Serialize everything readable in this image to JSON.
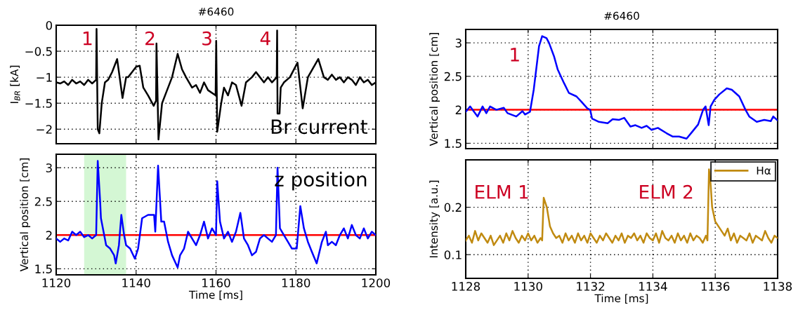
{
  "chart_data": [
    {
      "type": "line",
      "title": "#6460",
      "ylabel": "I$_{BR}$ [kA]",
      "xlim": [
        1120,
        1200
      ],
      "xticks": [
        1120,
        1140,
        1160,
        1180,
        1200
      ],
      "ylim": [
        -2.28,
        0
      ],
      "yticks": [
        {
          "value": -2,
          "label": "−2"
        },
        {
          "value": -1.5,
          "label": "−1.5"
        },
        {
          "value": -1,
          "label": "−1"
        },
        {
          "value": -0.5,
          "label": "−0.5"
        },
        0
      ],
      "tick_labels": "y",
      "grid": true,
      "annotations": [
        "1",
        "2",
        "3",
        "4",
        "Br current"
      ],
      "series": [
        {
          "color": "#000000",
          "x": [
            1120,
            1121,
            1122,
            1123,
            1124,
            1125,
            1126,
            1127,
            1128,
            1129,
            1130,
            1130.1,
            1130.4,
            1130.8,
            1131.4,
            1132.2,
            1133,
            1134,
            1135.25,
            1136.6,
            1137.5,
            1138,
            1139,
            1140,
            1140.9,
            1141.8,
            1143,
            1144.4,
            1145,
            1145.1,
            1145.6,
            1146.5,
            1147.5,
            1149,
            1150.4,
            1151.5,
            1152.5,
            1154,
            1155,
            1156,
            1157,
            1158,
            1159.9,
            1160.05,
            1160.3,
            1161.3,
            1162,
            1163,
            1164,
            1165,
            1166.4,
            1167.5,
            1169,
            1170,
            1171,
            1172,
            1173,
            1174,
            1175.2,
            1175.3,
            1175.4,
            1175.9,
            1176.2,
            1177,
            1178.5,
            1180.4,
            1181.7,
            1183,
            1185.6,
            1187,
            1188,
            1189,
            1190,
            1191,
            1192,
            1193,
            1194,
            1195,
            1196,
            1197,
            1198,
            1199,
            1200
          ],
          "values": [
            -1.1,
            -1.12,
            -1.08,
            -1.15,
            -1.05,
            -1.12,
            -1.08,
            -1.15,
            -1.05,
            -1.12,
            -1.05,
            -0.07,
            -2.0,
            -2.08,
            -1.5,
            -1.1,
            -1.05,
            -0.9,
            -0.65,
            -1.4,
            -1.0,
            -1.0,
            -0.9,
            -0.8,
            -0.78,
            -1.2,
            -1.35,
            -1.55,
            -1.45,
            -0.35,
            -2.2,
            -1.5,
            -1.3,
            -1.0,
            -0.55,
            -0.85,
            -1.0,
            -1.2,
            -1.15,
            -1.3,
            -1.1,
            -1.25,
            -1.35,
            -0.3,
            -2.05,
            -1.5,
            -1.2,
            -1.35,
            -1.1,
            -1.15,
            -1.55,
            -1.1,
            -1.0,
            -0.9,
            -1.0,
            -1.1,
            -1.0,
            -1.1,
            -1.0,
            -0.1,
            -1.7,
            -1.7,
            -1.2,
            -1.1,
            -1.0,
            -0.72,
            -1.6,
            -1.0,
            -0.65,
            -1.0,
            -1.05,
            -0.95,
            -1.05,
            -1.0,
            -1.1,
            -1.0,
            -1.05,
            -1.15,
            -1.0,
            -1.1,
            -1.05,
            -1.15,
            -1.1
          ]
        }
      ]
    },
    {
      "type": "line",
      "xlabel": "Time [ms]",
      "ylabel": "Vertical position [cm]",
      "xlim": [
        1120,
        1200
      ],
      "xticks": [
        1120,
        1140,
        1160,
        1180,
        1200
      ],
      "ylim": [
        1.41,
        3.2
      ],
      "yticks": [
        1.5,
        2,
        2.5,
        3
      ],
      "grid": true,
      "annotations": [
        "z position"
      ],
      "ref_lines": [
        {
          "axis": "y",
          "value": 2,
          "color": "#ff0000"
        }
      ],
      "bands": [
        {
          "axis": "x",
          "from": 1127,
          "to": 1137.5,
          "color": "#d4f7d4"
        }
      ],
      "series": [
        {
          "color": "#0000ff",
          "x": [
            1120,
            1121,
            1122,
            1123,
            1124,
            1125,
            1126,
            1127,
            1128,
            1129,
            1130,
            1130.4,
            1131,
            1131.2,
            1132.5,
            1133.5,
            1134.5,
            1134.9,
            1135.7,
            1136.3,
            1137,
            1137.5,
            1138.5,
            1139.7,
            1140.5,
            1141.5,
            1143,
            1144.5,
            1144.8,
            1145.5,
            1146.3,
            1147,
            1148,
            1149,
            1150.4,
            1151,
            1152,
            1153,
            1154,
            1155,
            1156,
            1157,
            1158,
            1159,
            1160,
            1160.3,
            1161,
            1162,
            1163,
            1164,
            1165,
            1166.1,
            1167,
            1168,
            1169,
            1170,
            1171,
            1172,
            1173,
            1174,
            1175,
            1175.4,
            1176,
            1177,
            1178,
            1179,
            1180.2,
            1181.1,
            1182,
            1183,
            1184,
            1185.2,
            1186.5,
            1187.5,
            1188,
            1189,
            1190,
            1191,
            1192,
            1193,
            1194,
            1195,
            1196,
            1197,
            1198,
            1199,
            1200
          ],
          "values": [
            1.95,
            1.9,
            1.95,
            1.92,
            2.05,
            2.0,
            2.05,
            1.97,
            2.0,
            1.95,
            2.0,
            3.1,
            2.5,
            2.25,
            1.85,
            1.8,
            1.7,
            1.58,
            1.85,
            2.3,
            2.0,
            1.85,
            1.8,
            1.65,
            1.8,
            2.25,
            2.3,
            2.3,
            2.05,
            3.03,
            2.2,
            2.2,
            1.9,
            1.7,
            1.52,
            1.7,
            1.8,
            2.05,
            1.95,
            1.85,
            2.0,
            2.2,
            1.95,
            2.1,
            2.0,
            2.8,
            2.2,
            1.95,
            2.05,
            1.9,
            2.05,
            2.33,
            1.95,
            1.85,
            1.7,
            1.75,
            1.95,
            2.0,
            1.95,
            1.9,
            2.0,
            3.0,
            2.1,
            2.0,
            1.9,
            1.8,
            1.8,
            2.43,
            2.1,
            1.9,
            1.75,
            1.58,
            1.9,
            2.05,
            1.85,
            1.9,
            1.85,
            2.0,
            2.1,
            1.95,
            2.15,
            2.0,
            1.95,
            2.1,
            1.95,
            2.05,
            2.0
          ]
        }
      ]
    },
    {
      "type": "line",
      "title": "#6460",
      "ylabel": "Vertical position [cm]",
      "xlim": [
        1128,
        1138
      ],
      "xticks": [
        1128,
        1130,
        1132,
        1134,
        1136,
        1138
      ],
      "ylim": [
        1.42,
        3.2
      ],
      "yticks": [
        1.5,
        2,
        2.5,
        3
      ],
      "tick_labels": "y",
      "grid": true,
      "annotations": [
        "1"
      ],
      "ref_lines": [
        {
          "axis": "y",
          "value": 2,
          "color": "#ff0000"
        }
      ],
      "series": [
        {
          "color": "#0000ff",
          "x": [
            1128,
            1128.14,
            1128.38,
            1128.54,
            1128.66,
            1128.78,
            1128.98,
            1129.22,
            1129.34,
            1129.62,
            1129.82,
            1129.9,
            1130.06,
            1130.18,
            1130.35,
            1130.45,
            1130.59,
            1130.67,
            1130.83,
            1130.95,
            1131.15,
            1131.31,
            1131.55,
            1131.71,
            1131.9,
            1131.99,
            1132.05,
            1132.27,
            1132.55,
            1132.71,
            1132.92,
            1133.08,
            1133.28,
            1133.44,
            1133.64,
            1133.8,
            1133.96,
            1134.16,
            1134.44,
            1134.64,
            1134.84,
            1135.08,
            1135.24,
            1135.45,
            1135.61,
            1135.69,
            1135.79,
            1135.85,
            1135.97,
            1136.13,
            1136.37,
            1136.53,
            1136.77,
            1136.97,
            1137.09,
            1137.33,
            1137.57,
            1137.78,
            1137.86,
            1138
          ],
          "values": [
            1.97,
            2.05,
            1.9,
            2.05,
            1.95,
            2.05,
            2.0,
            2.03,
            1.95,
            1.9,
            1.98,
            1.93,
            1.97,
            2.3,
            2.95,
            3.1,
            3.07,
            3.0,
            2.8,
            2.6,
            2.4,
            2.25,
            2.2,
            2.12,
            2.02,
            2.0,
            1.87,
            1.82,
            1.8,
            1.86,
            1.85,
            1.88,
            1.75,
            1.77,
            1.73,
            1.76,
            1.7,
            1.73,
            1.65,
            1.6,
            1.6,
            1.57,
            1.66,
            1.78,
            2.0,
            2.05,
            1.77,
            2.05,
            2.15,
            2.23,
            2.32,
            2.3,
            2.2,
            2.0,
            1.9,
            1.82,
            1.85,
            1.83,
            1.9,
            1.84
          ]
        }
      ]
    },
    {
      "type": "line",
      "xlabel": "Time [ms]",
      "ylabel": "Intensity [a.u.]",
      "xlim": [
        1128,
        1138
      ],
      "xticks": [
        1128,
        1130,
        1132,
        1134,
        1136,
        1138
      ],
      "ylim": [
        0.05,
        0.3
      ],
      "yticks": [
        0.1,
        0.2
      ],
      "grid": true,
      "legend": "top right",
      "annotations": [
        "ELM 1",
        "ELM 2"
      ],
      "series": [
        {
          "name": "Hα",
          "color": "#c08a10",
          "x": [
            1128,
            1128.1,
            1128.2,
            1128.3,
            1128.4,
            1128.5,
            1128.6,
            1128.7,
            1128.8,
            1128.9,
            1129,
            1129.1,
            1129.2,
            1129.3,
            1129.4,
            1129.5,
            1129.6,
            1129.7,
            1129.8,
            1129.9,
            1130,
            1130.1,
            1130.2,
            1130.3,
            1130.4,
            1130.45,
            1130.5,
            1130.6,
            1130.7,
            1130.8,
            1130.9,
            1131,
            1131.1,
            1131.2,
            1131.3,
            1131.4,
            1131.5,
            1131.6,
            1131.7,
            1131.8,
            1131.9,
            1132,
            1132.1,
            1132.2,
            1132.3,
            1132.4,
            1132.5,
            1132.6,
            1132.7,
            1132.8,
            1132.9,
            1133,
            1133.1,
            1133.2,
            1133.3,
            1133.4,
            1133.5,
            1133.6,
            1133.7,
            1133.8,
            1133.9,
            1134,
            1134.1,
            1134.2,
            1134.3,
            1134.4,
            1134.5,
            1134.6,
            1134.7,
            1134.8,
            1134.9,
            1135,
            1135.1,
            1135.2,
            1135.3,
            1135.4,
            1135.5,
            1135.6,
            1135.7,
            1135.75,
            1135.8,
            1135.85,
            1135.9,
            1136,
            1136.1,
            1136.2,
            1136.3,
            1136.4,
            1136.5,
            1136.6,
            1136.7,
            1136.8,
            1136.9,
            1137,
            1137.1,
            1137.2,
            1137.3,
            1137.4,
            1137.5,
            1137.6,
            1137.7,
            1137.8,
            1137.9,
            1138
          ],
          "values": [
            0.13,
            0.14,
            0.125,
            0.15,
            0.13,
            0.145,
            0.135,
            0.125,
            0.14,
            0.12,
            0.13,
            0.14,
            0.125,
            0.145,
            0.13,
            0.15,
            0.135,
            0.125,
            0.14,
            0.13,
            0.145,
            0.13,
            0.14,
            0.125,
            0.135,
            0.13,
            0.22,
            0.2,
            0.16,
            0.145,
            0.135,
            0.14,
            0.125,
            0.145,
            0.13,
            0.14,
            0.125,
            0.145,
            0.13,
            0.14,
            0.125,
            0.145,
            0.135,
            0.125,
            0.14,
            0.13,
            0.145,
            0.135,
            0.125,
            0.14,
            0.13,
            0.145,
            0.125,
            0.14,
            0.135,
            0.145,
            0.13,
            0.14,
            0.125,
            0.145,
            0.135,
            0.13,
            0.145,
            0.125,
            0.15,
            0.135,
            0.13,
            0.14,
            0.125,
            0.145,
            0.13,
            0.14,
            0.125,
            0.145,
            0.13,
            0.14,
            0.135,
            0.125,
            0.14,
            0.13,
            0.28,
            0.25,
            0.2,
            0.17,
            0.16,
            0.15,
            0.14,
            0.155,
            0.13,
            0.145,
            0.125,
            0.14,
            0.135,
            0.13,
            0.145,
            0.125,
            0.14,
            0.135,
            0.13,
            0.15,
            0.135,
            0.125,
            0.14,
            0.135
          ]
        }
      ]
    }
  ]
}
